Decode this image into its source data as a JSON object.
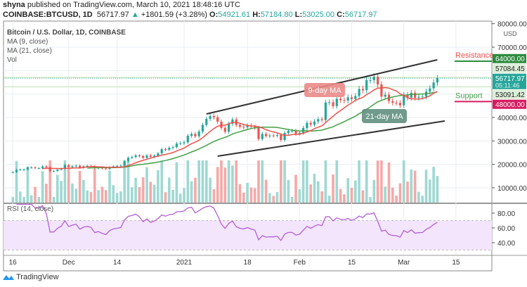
{
  "header": {
    "publisher": "shyna",
    "published_text": "published on TradingView.com, March 10, 2021 18:48:16 UTC",
    "symbol": "COINBASE:BTCUSD, 1D",
    "last": "56717.97",
    "change": "+1801.59 (+3.28%)",
    "o_label": "O:",
    "o": "54921.61",
    "h_label": "H:",
    "h": "57184.80",
    "l_label": "L:",
    "l": "53025.00",
    "c_label": "C:",
    "c": "56717.97"
  },
  "legend": {
    "title": "Bitcoin / U.S. Dollar, 1D, COINBASE",
    "ma9": "MA (9, close)",
    "ma21": "MA (21, close)",
    "vol": "Vol",
    "rsi": "RSI (14, close)"
  },
  "footer": {
    "brand": "TradingView"
  },
  "colors": {
    "up": "#26a69a",
    "down": "#ef5350",
    "ma9": "#f0504a",
    "ma21": "#43a047",
    "rsi": "#b35fd6",
    "resistance": "#2e8b3e",
    "support": "#d81b60"
  },
  "chart_data": {
    "type": "candlestick",
    "first_date": "2020-11-16",
    "interval": "1D",
    "closes": [
      16700,
      17650,
      17800,
      17800,
      18650,
      18700,
      18400,
      18400,
      19150,
      18750,
      17150,
      17150,
      17750,
      18200,
      19700,
      18800,
      19200,
      19450,
      18650,
      19150,
      19350,
      19200,
      18350,
      18550,
      18250,
      18050,
      18800,
      19150,
      19270,
      19440,
      21350,
      22800,
      23150,
      23850,
      23480,
      22750,
      23820,
      23250,
      23700,
      24700,
      26450,
      26250,
      27050,
      27350,
      28850,
      29000,
      29400,
      32200,
      33000,
      32000,
      34000,
      36800,
      39400,
      40600,
      40100,
      38200,
      35550,
      33900,
      37300,
      39150,
      36800,
      36050,
      35800,
      36600,
      36050,
      35550,
      30800,
      33000,
      32100,
      32300,
      32250,
      32500,
      30400,
      33400,
      34300,
      34300,
      33100,
      33500,
      35500,
      37700,
      36950,
      38300,
      39250,
      38900,
      46400,
      46500,
      44850,
      48000,
      47400,
      47200,
      48600,
      47900,
      49150,
      52150,
      51600,
      55900,
      55900,
      57400,
      54100,
      48900,
      49700,
      47000,
      46300,
      46200,
      45200,
      49600,
      48400,
      50500,
      48400,
      48800,
      48900,
      51000,
      52400,
      54900,
      56717.97
    ],
    "price_axis": {
      "unit": "USD",
      "ticks": [
        "80000.00",
        "70000.00",
        "40000.00",
        "30000.00",
        "20000.00",
        "10000.00"
      ],
      "range": [
        0,
        80000
      ]
    },
    "price_labels": [
      {
        "text": "64000.00",
        "value": 64000,
        "color": "#2e8b3e"
      },
      {
        "text": "57084.45",
        "value": 57084.45,
        "color": "#dcefd8"
      },
      {
        "text": "56717.97",
        "sub": "05:11:46",
        "value": 56717.97,
        "color": "#26a69a"
      },
      {
        "text": "53091.42",
        "value": 53091.42,
        "color": "#dcefd8"
      },
      {
        "text": "48000.00",
        "value": 48000,
        "color": "#d81b60"
      }
    ],
    "date_ticks": [
      {
        "label": "16",
        "date": "2020-11-16"
      },
      {
        "label": "Dec",
        "date": "2020-12-01"
      },
      {
        "label": "14",
        "date": "2020-12-14"
      },
      {
        "label": "2021",
        "date": "2021-01-01"
      },
      {
        "label": "18",
        "date": "2021-01-18"
      },
      {
        "label": "Feb",
        "date": "2021-02-01"
      },
      {
        "label": "15",
        "date": "2021-02-15"
      },
      {
        "label": "Mar",
        "date": "2021-03-01"
      },
      {
        "label": "15",
        "date": "2021-03-15"
      }
    ],
    "rsi_axis": {
      "ticks": [
        "80.00",
        "60.00",
        "40.00"
      ],
      "bands": [
        70,
        30
      ]
    },
    "channel": {
      "upper": [
        [
          "2021-01-07",
          41500
        ],
        [
          "2021-03-10",
          64600
        ]
      ],
      "lower": [
        [
          "2021-01-10",
          23500
        ],
        [
          "2021-03-12",
          38500
        ]
      ]
    },
    "levels": {
      "resistance": {
        "label": "Resistance",
        "value": 64000
      },
      "support": {
        "label": "Support",
        "value": 48000
      }
    },
    "annotations": [
      {
        "text": "9-day MA",
        "date": "2021-02-08",
        "value": 47000
      },
      {
        "text": "21-day MA",
        "date": "2021-02-25",
        "value": 42000
      }
    ]
  }
}
